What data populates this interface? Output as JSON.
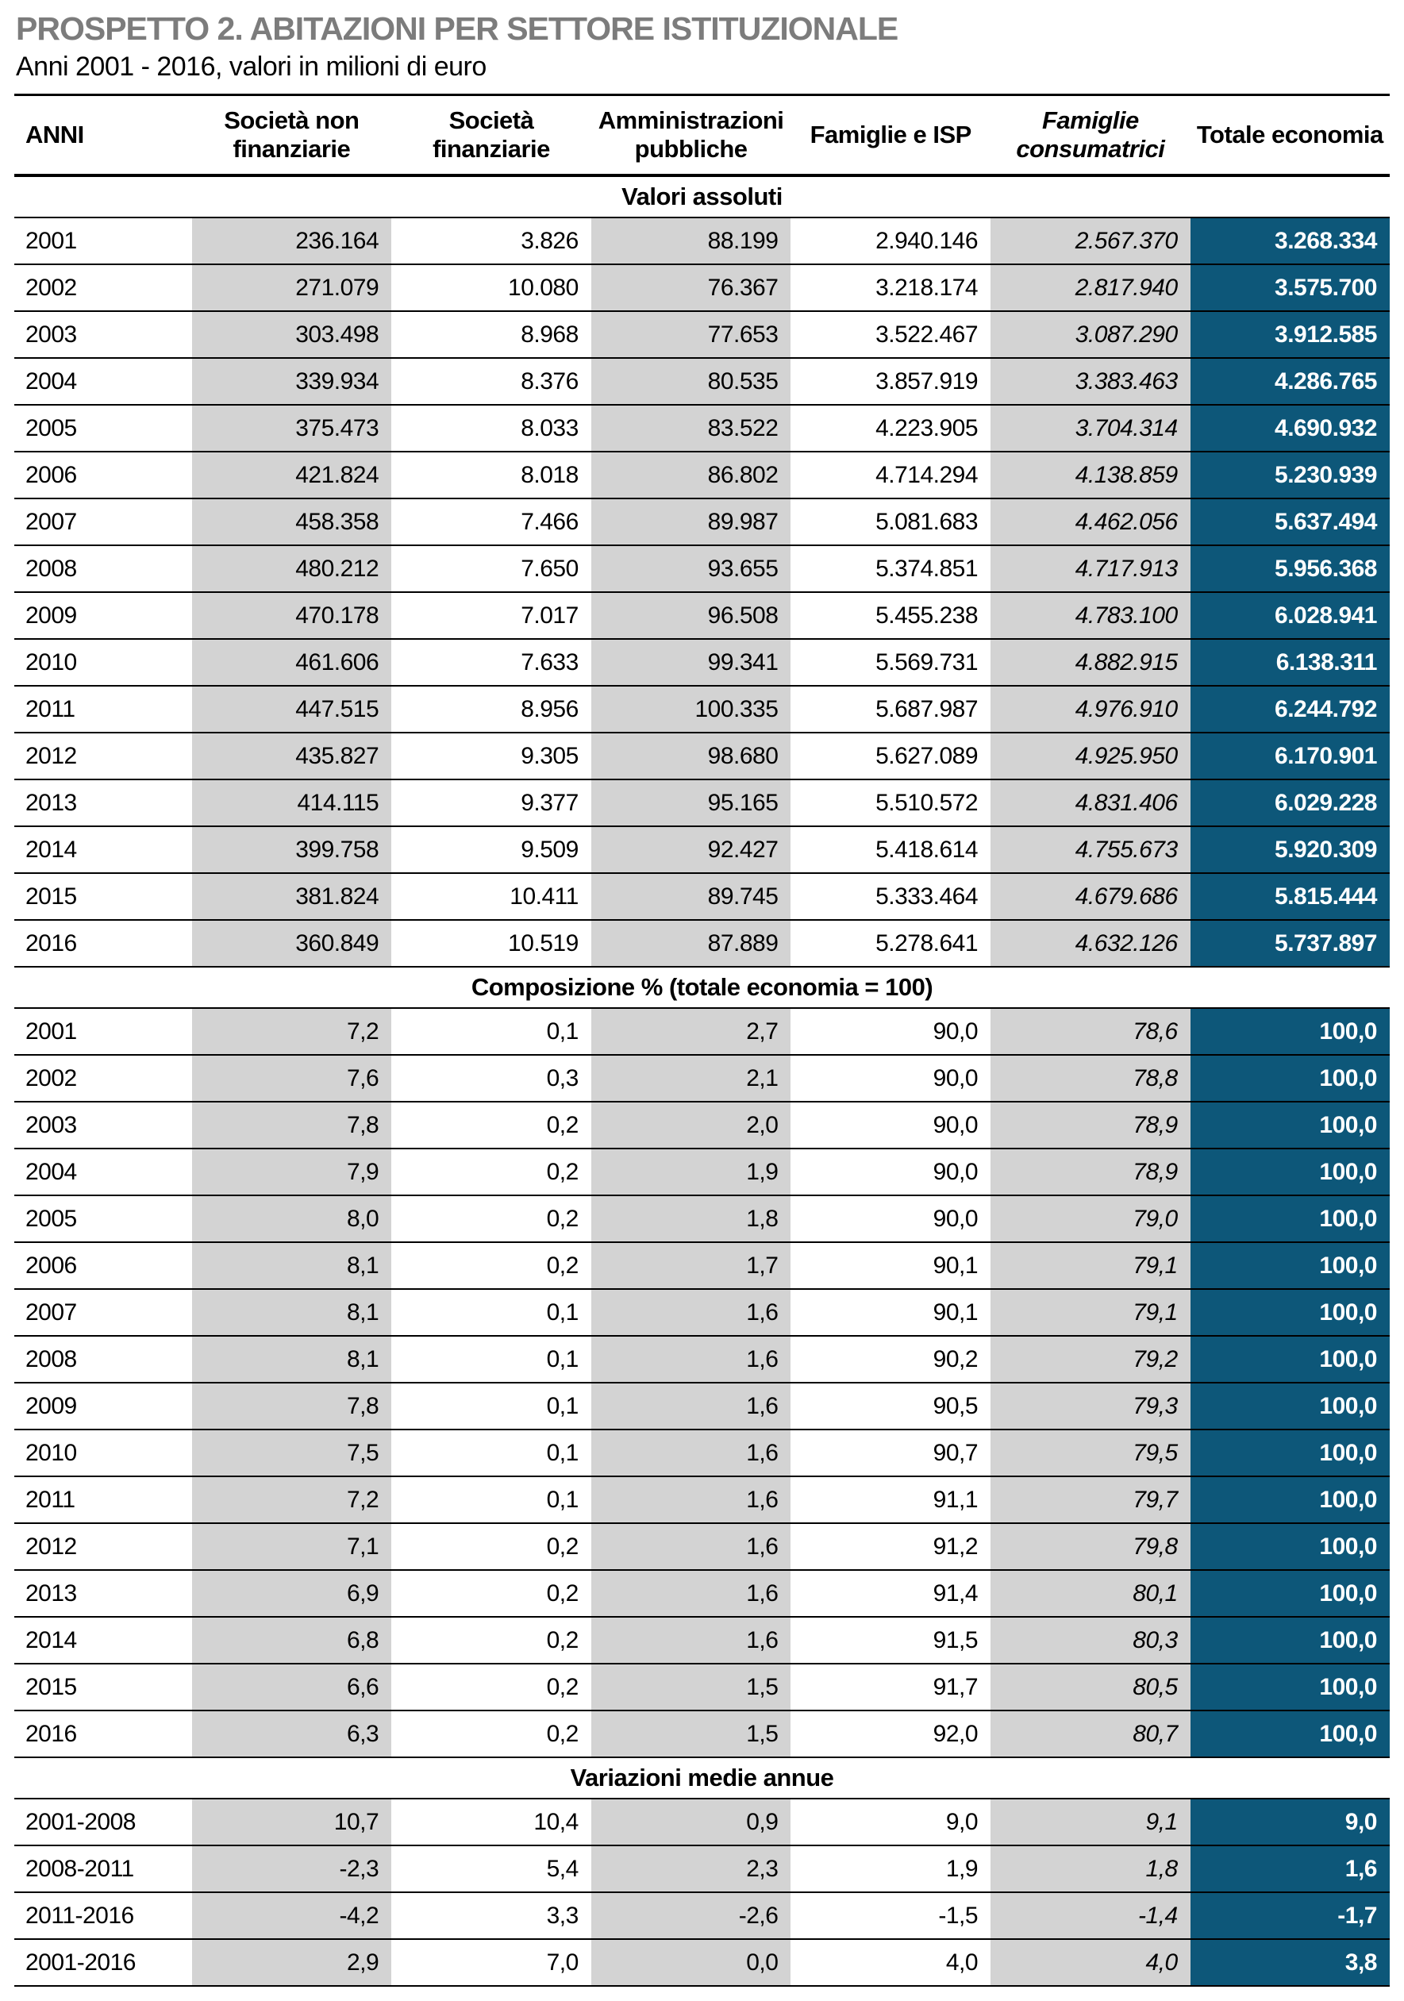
{
  "title": "PROSPETTO 2. ABITAZIONI PER SETTORE ISTITUZIONALE",
  "subtitle": "Anni 2001 - 2016, valori in milioni di euro",
  "colors": {
    "accent_blue": "#0d5779",
    "band_gray": "#d3d3d3",
    "title_gray": "#7c7c7c"
  },
  "table": {
    "columns": [
      "ANNI",
      "Società non finanziarie",
      "Società finanziarie",
      "Amministrazioni pubbliche",
      "Famiglie e ISP",
      "Famiglie consumatrici",
      "Totale economia"
    ],
    "sections": [
      {
        "label": "Valori assoluti",
        "rows": [
          [
            "2001",
            "236.164",
            "3.826",
            "88.199",
            "2.940.146",
            "2.567.370",
            "3.268.334"
          ],
          [
            "2002",
            "271.079",
            "10.080",
            "76.367",
            "3.218.174",
            "2.817.940",
            "3.575.700"
          ],
          [
            "2003",
            "303.498",
            "8.968",
            "77.653",
            "3.522.467",
            "3.087.290",
            "3.912.585"
          ],
          [
            "2004",
            "339.934",
            "8.376",
            "80.535",
            "3.857.919",
            "3.383.463",
            "4.286.765"
          ],
          [
            "2005",
            "375.473",
            "8.033",
            "83.522",
            "4.223.905",
            "3.704.314",
            "4.690.932"
          ],
          [
            "2006",
            "421.824",
            "8.018",
            "86.802",
            "4.714.294",
            "4.138.859",
            "5.230.939"
          ],
          [
            "2007",
            "458.358",
            "7.466",
            "89.987",
            "5.081.683",
            "4.462.056",
            "5.637.494"
          ],
          [
            "2008",
            "480.212",
            "7.650",
            "93.655",
            "5.374.851",
            "4.717.913",
            "5.956.368"
          ],
          [
            "2009",
            "470.178",
            "7.017",
            "96.508",
            "5.455.238",
            "4.783.100",
            "6.028.941"
          ],
          [
            "2010",
            "461.606",
            "7.633",
            "99.341",
            "5.569.731",
            "4.882.915",
            "6.138.311"
          ],
          [
            "2011",
            "447.515",
            "8.956",
            "100.335",
            "5.687.987",
            "4.976.910",
            "6.244.792"
          ],
          [
            "2012",
            "435.827",
            "9.305",
            "98.680",
            "5.627.089",
            "4.925.950",
            "6.170.901"
          ],
          [
            "2013",
            "414.115",
            "9.377",
            "95.165",
            "5.510.572",
            "4.831.406",
            "6.029.228"
          ],
          [
            "2014",
            "399.758",
            "9.509",
            "92.427",
            "5.418.614",
            "4.755.673",
            "5.920.309"
          ],
          [
            "2015",
            "381.824",
            "10.411",
            "89.745",
            "5.333.464",
            "4.679.686",
            "5.815.444"
          ],
          [
            "2016",
            "360.849",
            "10.519",
            "87.889",
            "5.278.641",
            "4.632.126",
            "5.737.897"
          ]
        ]
      },
      {
        "label": "Composizione % (totale economia = 100)",
        "rows": [
          [
            "2001",
            "7,2",
            "0,1",
            "2,7",
            "90,0",
            "78,6",
            "100,0"
          ],
          [
            "2002",
            "7,6",
            "0,3",
            "2,1",
            "90,0",
            "78,8",
            "100,0"
          ],
          [
            "2003",
            "7,8",
            "0,2",
            "2,0",
            "90,0",
            "78,9",
            "100,0"
          ],
          [
            "2004",
            "7,9",
            "0,2",
            "1,9",
            "90,0",
            "78,9",
            "100,0"
          ],
          [
            "2005",
            "8,0",
            "0,2",
            "1,8",
            "90,0",
            "79,0",
            "100,0"
          ],
          [
            "2006",
            "8,1",
            "0,2",
            "1,7",
            "90,1",
            "79,1",
            "100,0"
          ],
          [
            "2007",
            "8,1",
            "0,1",
            "1,6",
            "90,1",
            "79,1",
            "100,0"
          ],
          [
            "2008",
            "8,1",
            "0,1",
            "1,6",
            "90,2",
            "79,2",
            "100,0"
          ],
          [
            "2009",
            "7,8",
            "0,1",
            "1,6",
            "90,5",
            "79,3",
            "100,0"
          ],
          [
            "2010",
            "7,5",
            "0,1",
            "1,6",
            "90,7",
            "79,5",
            "100,0"
          ],
          [
            "2011",
            "7,2",
            "0,1",
            "1,6",
            "91,1",
            "79,7",
            "100,0"
          ],
          [
            "2012",
            "7,1",
            "0,2",
            "1,6",
            "91,2",
            "79,8",
            "100,0"
          ],
          [
            "2013",
            "6,9",
            "0,2",
            "1,6",
            "91,4",
            "80,1",
            "100,0"
          ],
          [
            "2014",
            "6,8",
            "0,2",
            "1,6",
            "91,5",
            "80,3",
            "100,0"
          ],
          [
            "2015",
            "6,6",
            "0,2",
            "1,5",
            "91,7",
            "80,5",
            "100,0"
          ],
          [
            "2016",
            "6,3",
            "0,2",
            "1,5",
            "92,0",
            "80,7",
            "100,0"
          ]
        ]
      },
      {
        "label": "Variazioni medie annue",
        "rows": [
          [
            "2001-2008",
            "10,7",
            "10,4",
            "0,9",
            "9,0",
            "9,1",
            "9,0"
          ],
          [
            "2008-2011",
            "-2,3",
            "5,4",
            "2,3",
            "1,9",
            "1,8",
            "1,6"
          ],
          [
            "2011-2016",
            "-4,2",
            "3,3",
            "-2,6",
            "-1,5",
            "-1,4",
            "-1,7"
          ],
          [
            "2001-2016",
            "2,9",
            "7,0",
            "0,0",
            "4,0",
            "4,0",
            "3,8"
          ]
        ]
      }
    ]
  }
}
